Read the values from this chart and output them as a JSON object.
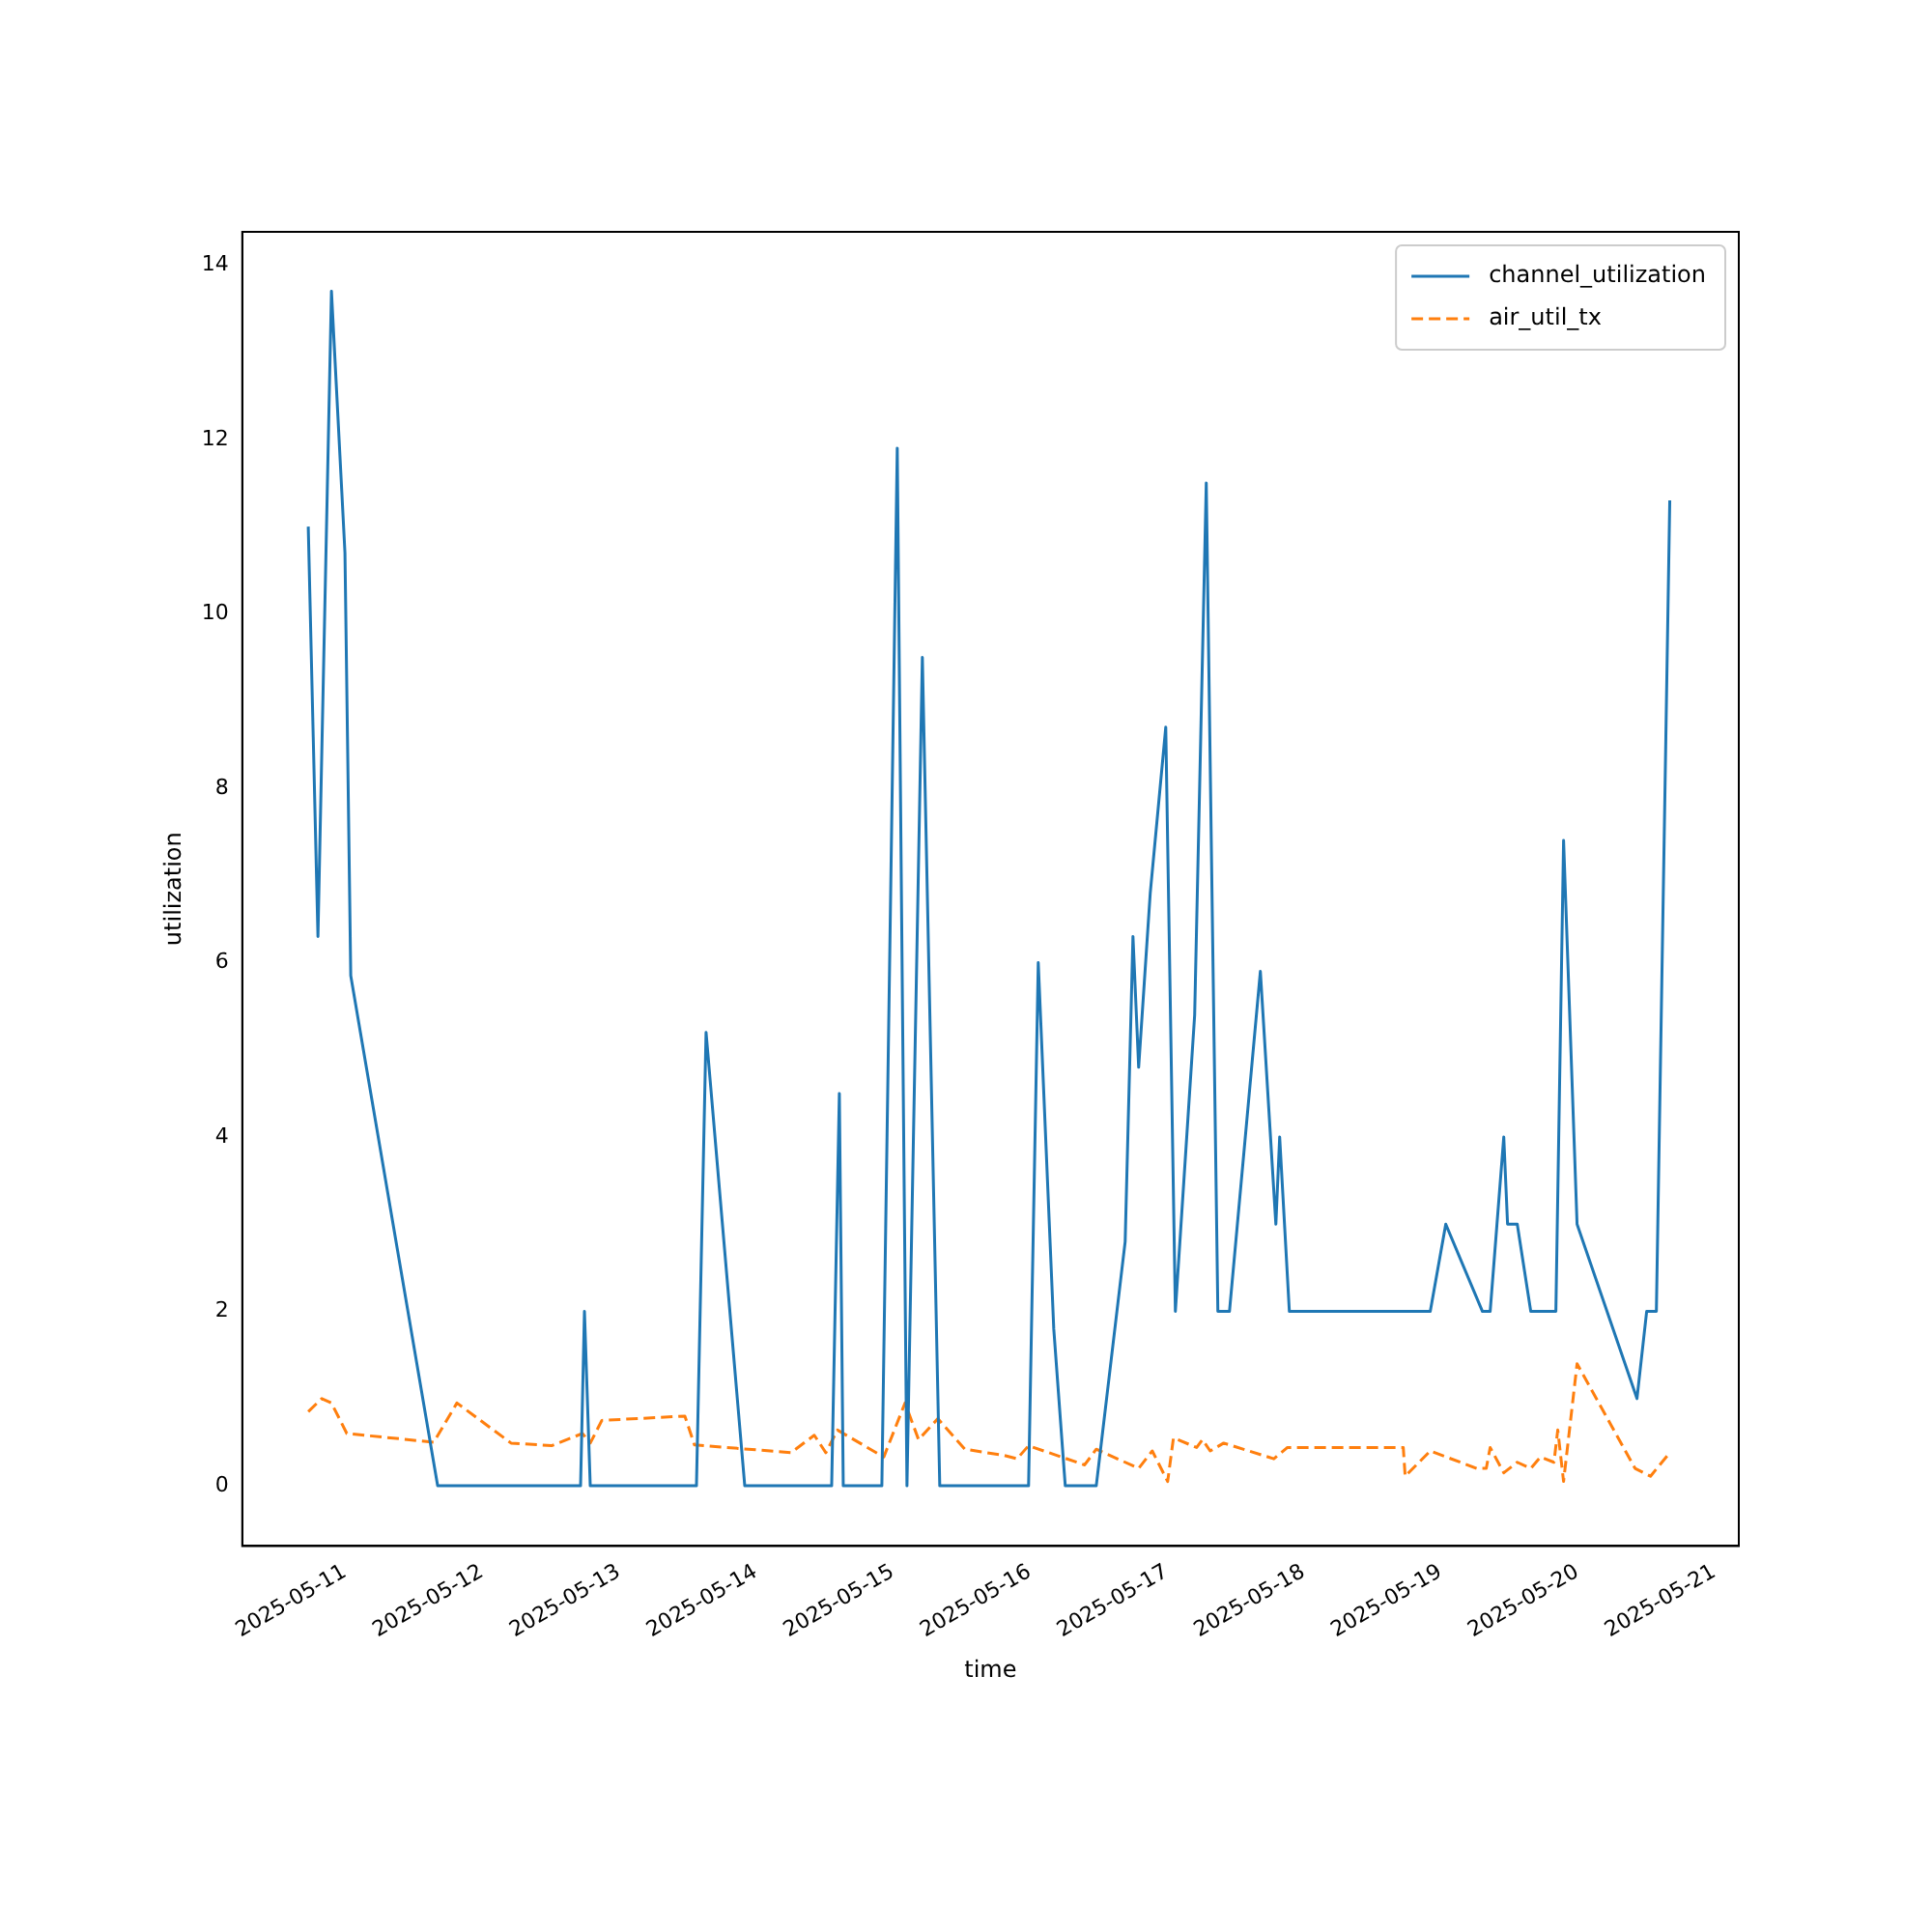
{
  "chart_data": {
    "type": "line",
    "xlabel": "time",
    "ylabel": "utilization",
    "legend": "top right",
    "grid": false,
    "xlim": [
      "2025-05-10T06:00",
      "2025-05-21T04:20"
    ],
    "ylim": [
      -0.69,
      14.38
    ],
    "xticks": [
      "2025-05-11",
      "2025-05-12",
      "2025-05-13",
      "2025-05-14",
      "2025-05-15",
      "2025-05-16",
      "2025-05-17",
      "2025-05-18",
      "2025-05-19",
      "2025-05-20",
      "2025-05-21"
    ],
    "yticks": [
      0,
      2,
      4,
      6,
      8,
      10,
      12,
      14
    ],
    "series": [
      {
        "name": "channel_utilization",
        "color": "#1f77b4",
        "line_style": "solid",
        "x": [
          "2025-05-10T17:34",
          "2025-05-10T19:16",
          "2025-05-10T21:38",
          "2025-05-11T00:00",
          "2025-05-11T01:01",
          "2025-05-11T16:15",
          "2025-05-12T17:18",
          "2025-05-12T17:59",
          "2025-05-12T19:00",
          "2025-05-13T13:37",
          "2025-05-13T15:18",
          "2025-05-13T22:05",
          "2025-05-14T13:19",
          "2025-05-14T14:40",
          "2025-05-14T15:21",
          "2025-05-14T22:07",
          "2025-05-15T00:49",
          "2025-05-15T02:31",
          "2025-05-15T05:13",
          "2025-05-15T08:16",
          "2025-05-15T23:50",
          "2025-05-16T01:32",
          "2025-05-16T04:15",
          "2025-05-16T06:16",
          "2025-05-16T11:42",
          "2025-05-16T16:46",
          "2025-05-16T18:08",
          "2025-05-16T19:08",
          "2025-05-16T21:10",
          "2025-05-16T23:53",
          "2025-05-17T01:34",
          "2025-05-17T04:57",
          "2025-05-17T06:59",
          "2025-05-17T09:01",
          "2025-05-17T11:03",
          "2025-05-17T16:28",
          "2025-05-17T19:11",
          "2025-05-17T19:51",
          "2025-05-17T21:33",
          "2025-05-18T22:15",
          "2025-05-19T00:58",
          "2025-05-19T07:24",
          "2025-05-19T08:45",
          "2025-05-19T11:08",
          "2025-05-19T11:48",
          "2025-05-19T13:30",
          "2025-05-19T15:52",
          "2025-05-19T20:16",
          "2025-05-19T21:37",
          "2025-05-19T23:59",
          "2025-05-20T10:29",
          "2025-05-20T12:11",
          "2025-05-20T13:53",
          "2025-05-20T16:14"
        ],
        "values": [
          11.0,
          6.3,
          13.7,
          10.7,
          5.85,
          0,
          0,
          2.0,
          0,
          0,
          5.2,
          0,
          0,
          4.5,
          0,
          0,
          11.9,
          0,
          9.5,
          0,
          0,
          6.0,
          1.8,
          0,
          0,
          2.8,
          6.3,
          4.8,
          6.8,
          8.7,
          2.0,
          5.4,
          11.5,
          2.0,
          2.0,
          5.9,
          3.0,
          4.0,
          2.0,
          2.0,
          3.0,
          2.0,
          2.0,
          4.0,
          3.0,
          3.0,
          2.0,
          2.0,
          7.4,
          3.0,
          1.0,
          2.0,
          2.0,
          11.3
        ]
      },
      {
        "name": "air_util_tx",
        "color": "#ff7f0e",
        "line_style": "dashed",
        "x": [
          "2025-05-10T17:34",
          "2025-05-10T19:56",
          "2025-05-10T21:38",
          "2025-05-11T00:20",
          "2025-05-11T15:34",
          "2025-05-11T19:38",
          "2025-05-12T05:07",
          "2025-05-12T12:13",
          "2025-05-12T17:38",
          "2025-05-12T19:00",
          "2025-05-12T21:02",
          "2025-05-13T11:35",
          "2025-05-13T13:16",
          "2025-05-14T06:12",
          "2025-05-14T10:16",
          "2025-05-14T12:18",
          "2025-05-14T14:20",
          "2025-05-14T22:27",
          "2025-05-15T02:11",
          "2025-05-15T04:33",
          "2025-05-15T07:56",
          "2025-05-15T12:40",
          "2025-05-15T19:27",
          "2025-05-15T21:49",
          "2025-05-15T23:50",
          "2025-05-16T09:40",
          "2025-05-16T11:42",
          "2025-05-16T19:08",
          "2025-05-16T21:31",
          "2025-05-17T00:13",
          "2025-05-17T01:14",
          "2025-05-17T05:18",
          "2025-05-17T06:19",
          "2025-05-17T07:40",
          "2025-05-17T10:02",
          "2025-05-17T18:50",
          "2025-05-17T21:13",
          "2025-05-18T17:31",
          "2025-05-18T17:51",
          "2025-05-18T22:15",
          "2025-05-19T06:23",
          "2025-05-19T08:04",
          "2025-05-19T08:45",
          "2025-05-19T11:08",
          "2025-05-19T13:30",
          "2025-05-19T15:52",
          "2025-05-19T17:34",
          "2025-05-19T19:56",
          "2025-05-19T20:36",
          "2025-05-19T21:37",
          "2025-05-19T23:59",
          "2025-05-20T10:09",
          "2025-05-20T12:51",
          "2025-05-20T16:14"
        ],
        "values": [
          0.85,
          1.0,
          0.95,
          0.6,
          0.5,
          0.95,
          0.49,
          0.46,
          0.6,
          0.49,
          0.75,
          0.8,
          0.47,
          0.38,
          0.58,
          0.38,
          0.64,
          0.33,
          0.95,
          0.53,
          0.77,
          0.42,
          0.35,
          0.31,
          0.46,
          0.24,
          0.42,
          0.2,
          0.4,
          0.05,
          0.55,
          0.44,
          0.53,
          0.4,
          0.49,
          0.31,
          0.44,
          0.44,
          0.11,
          0.4,
          0.2,
          0.2,
          0.44,
          0.15,
          0.27,
          0.2,
          0.33,
          0.27,
          0.64,
          0.05,
          1.4,
          0.2,
          0.11,
          0.38
        ]
      }
    ]
  }
}
